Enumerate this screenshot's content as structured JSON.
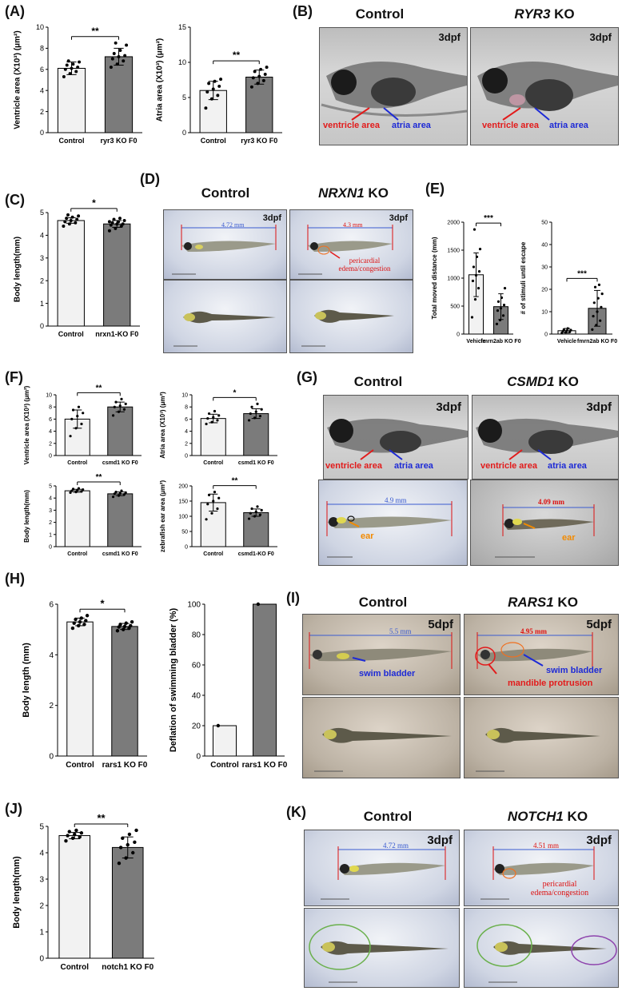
{
  "panels": {
    "A": {
      "label": "(A)"
    },
    "B": {
      "label": "(B)"
    },
    "C": {
      "label": "(C)"
    },
    "D": {
      "label": "(D)"
    },
    "E": {
      "label": "(E)"
    },
    "F": {
      "label": "(F)"
    },
    "G": {
      "label": "(G)"
    },
    "H": {
      "label": "(H)"
    },
    "I": {
      "label": "(I)"
    },
    "J": {
      "label": "(J)"
    },
    "K": {
      "label": "(K)"
    }
  },
  "images": {
    "B": {
      "control": "Control",
      "ko_gene": "RYR3",
      "ko_suffix": " KO",
      "stage": "3dpf",
      "ventricle": "ventricle area",
      "atria": "atria area"
    },
    "D": {
      "control": "Control",
      "ko_gene": "NRXN1",
      "ko_suffix": " KO",
      "stage": "3dpf",
      "len_control": "4.72 mm",
      "len_ko": "4.3 mm",
      "note": "pericardial edema/congestion"
    },
    "G": {
      "control": "Control",
      "ko_gene": "CSMD1",
      "ko_suffix": " KO",
      "stage": "3dpf",
      "ventricle": "ventricle area",
      "atria": "atria area",
      "len_control": "4.9 mm",
      "len_ko": "4.09 mm",
      "ear": "ear"
    },
    "I": {
      "control": "Control",
      "ko_gene": "RARS1",
      "ko_suffix": " KO",
      "stage": "5dpf",
      "len_control": "5.5 mm",
      "len_ko": "4.95 mm",
      "swim_bladder": "swim bladder",
      "mandible": "mandible protrusion"
    },
    "K": {
      "control": "Control",
      "ko_gene": "NOTCH1",
      "ko_suffix": " KO",
      "stage": "3dpf",
      "len_control": "4.72 mm",
      "len_ko": "4.51 mm",
      "note": "pericardial edema/congestion"
    }
  },
  "colors": {
    "control_bar": "#f2f2f2",
    "ko_bar": "#7b7b7b",
    "red_label": "#e21b1b",
    "blue_label": "#1d2ad6",
    "orange_label": "#f28a00",
    "green_ellipse": "#6ab04c",
    "purple_ellipse": "#8e44ad"
  },
  "chart_data": [
    {
      "id": "A1",
      "type": "bar",
      "categories": [
        "Control",
        "ryr3 KO F0"
      ],
      "values": [
        6.1,
        7.2
      ],
      "errors": [
        0.6,
        0.8
      ],
      "points": [
        [
          5.3,
          5.6,
          5.8,
          6.0,
          6.1,
          6.2,
          6.4,
          6.5,
          6.7,
          6.8
        ],
        [
          6.2,
          6.5,
          6.8,
          7.0,
          7.2,
          7.3,
          7.5,
          7.8,
          8.3,
          8.5
        ]
      ],
      "ylabel": "Ventricle area (X10³) (μm²)",
      "ylim": [
        0,
        10
      ],
      "yticks": [
        0,
        2,
        4,
        6,
        8,
        10
      ],
      "sig": "**"
    },
    {
      "id": "A2",
      "type": "bar",
      "categories": [
        "Control",
        "ryr3 KO F0"
      ],
      "values": [
        6.0,
        7.9
      ],
      "errors": [
        1.3,
        1.0
      ],
      "points": [
        [
          3.5,
          4.8,
          5.3,
          5.8,
          6.2,
          6.6,
          7.0,
          7.3,
          7.6
        ],
        [
          6.5,
          7.0,
          7.4,
          7.8,
          8.0,
          8.3,
          8.7,
          9.0,
          9.3
        ]
      ],
      "ylabel": "Atria area (X10³) (μm²)",
      "ylim": [
        0,
        15
      ],
      "yticks": [
        0,
        5,
        10,
        15
      ],
      "sig": "**"
    },
    {
      "id": "C",
      "type": "bar",
      "categories": [
        "Control",
        "nrxn1-KO F0"
      ],
      "values": [
        4.65,
        4.5
      ],
      "errors": [
        0.12,
        0.15
      ],
      "points": [
        [
          4.4,
          4.5,
          4.55,
          4.6,
          4.65,
          4.7,
          4.75,
          4.8,
          4.85,
          4.9
        ],
        [
          4.2,
          4.3,
          4.4,
          4.45,
          4.5,
          4.5,
          4.55,
          4.6,
          4.65,
          4.7,
          4.75,
          4.6
        ]
      ],
      "ylabel": "Body length(mm)",
      "ylim": [
        0,
        5
      ],
      "yticks": [
        0,
        1,
        2,
        3,
        4,
        5
      ],
      "sig": "*"
    },
    {
      "id": "E1",
      "type": "bar",
      "categories": [
        "Vehicle",
        "fmrn2ab KO F0"
      ],
      "values": [
        1060,
        490
      ],
      "errors": [
        390,
        230
      ],
      "points": [
        [
          300,
          620,
          820,
          950,
          1050,
          1120,
          1200,
          1380,
          1520,
          1870
        ],
        [
          180,
          250,
          330,
          420,
          460,
          520,
          580,
          650,
          820
        ]
      ],
      "ylabel": "Total moved distance (mm)",
      "ylim": [
        0,
        2000
      ],
      "yticks": [
        0,
        500,
        1000,
        1500,
        2000
      ],
      "sig": "***"
    },
    {
      "id": "E2",
      "type": "bar",
      "categories": [
        "Vehicle",
        "fmrn2ab KO F0"
      ],
      "values": [
        1.5,
        11.5
      ],
      "errors": [
        1.0,
        8.0
      ],
      "points": [
        [
          0.5,
          0.8,
          1.0,
          1.2,
          1.5,
          1.8,
          2.0,
          2.5
        ],
        [
          2,
          4,
          6,
          8,
          10,
          12,
          14,
          16,
          18,
          21,
          22
        ]
      ],
      "ylabel": "# of stimuli until escape",
      "ylim": [
        0,
        50
      ],
      "yticks": [
        0,
        10,
        20,
        30,
        40,
        50
      ],
      "sig": "***"
    },
    {
      "id": "F1",
      "type": "bar",
      "categories": [
        "Control",
        "csmd1 KO F0"
      ],
      "values": [
        6.0,
        8.0
      ],
      "errors": [
        1.5,
        0.8
      ],
      "points": [
        [
          3.2,
          4.5,
          5.2,
          6.0,
          6.5,
          7.0,
          7.5,
          8.0
        ],
        [
          6.6,
          7.2,
          7.6,
          8.0,
          8.2,
          8.5,
          8.8,
          9.3
        ]
      ],
      "ylabel": "Ventricle area (X10³) (μm²)",
      "ylim": [
        0,
        10
      ],
      "yticks": [
        0,
        2,
        4,
        6,
        8,
        10
      ],
      "sig": "**"
    },
    {
      "id": "F2",
      "type": "bar",
      "categories": [
        "Control",
        "csmd1 KO F0"
      ],
      "values": [
        6.1,
        6.9
      ],
      "errors": [
        0.7,
        0.8
      ],
      "points": [
        [
          5.2,
          5.5,
          5.8,
          6.1,
          6.3,
          6.6,
          6.9,
          7.3
        ],
        [
          5.8,
          6.2,
          6.5,
          6.9,
          7.2,
          7.6,
          8.0,
          8.5
        ]
      ],
      "ylabel": "Atria area (X10³) (μm²)",
      "ylim": [
        0,
        10
      ],
      "yticks": [
        0,
        2,
        4,
        6,
        8,
        10
      ],
      "sig": "*"
    },
    {
      "id": "F3",
      "type": "bar",
      "categories": [
        "Control",
        "csmd1 KO F0"
      ],
      "values": [
        4.6,
        4.35
      ],
      "errors": [
        0.12,
        0.15
      ],
      "points": [
        [
          4.45,
          4.5,
          4.55,
          4.6,
          4.65,
          4.7,
          4.75,
          4.8
        ],
        [
          4.1,
          4.2,
          4.3,
          4.35,
          4.4,
          4.45,
          4.5,
          4.6
        ]
      ],
      "ylabel": "Body length(mm)",
      "ylim": [
        0,
        5
      ],
      "yticks": [
        0,
        1,
        2,
        3,
        4,
        5
      ],
      "sig": "**"
    },
    {
      "id": "F4",
      "type": "bar",
      "categories": [
        "Control",
        "csmd1-KO F0"
      ],
      "values": [
        145,
        112
      ],
      "errors": [
        28,
        12
      ],
      "points": [
        [
          90,
          110,
          125,
          140,
          150,
          160,
          170,
          180
        ],
        [
          92,
          100,
          105,
          110,
          115,
          120,
          125,
          132
        ]
      ],
      "ylabel": "zebrafish ear area (μm²)",
      "ylim": [
        0,
        200
      ],
      "yticks": [
        0,
        50,
        100,
        150,
        200
      ],
      "sig": "**"
    },
    {
      "id": "H1",
      "type": "bar",
      "categories": [
        "Control",
        "rars1 KO F0"
      ],
      "values": [
        5.3,
        5.12
      ],
      "errors": [
        0.15,
        0.12
      ],
      "points": [
        [
          5.05,
          5.15,
          5.2,
          5.25,
          5.3,
          5.35,
          5.4,
          5.45,
          5.55
        ],
        [
          4.95,
          5.0,
          5.05,
          5.1,
          5.12,
          5.15,
          5.2,
          5.25,
          5.3
        ]
      ],
      "ylabel": "Body length (mm)",
      "ylim": [
        0,
        6
      ],
      "yticks": [
        0,
        2,
        4,
        6
      ],
      "sig": "*"
    },
    {
      "id": "H2",
      "type": "bar",
      "categories": [
        "Control",
        "rars1 KO F0"
      ],
      "values": [
        20,
        100
      ],
      "errors": [
        0,
        0
      ],
      "points": [
        [
          20
        ],
        [
          100
        ]
      ],
      "ylabel": "Deflation of swimming bladder (%)",
      "ylim": [
        0,
        100
      ],
      "yticks": [
        0,
        20,
        40,
        60,
        80,
        100
      ],
      "sig": ""
    },
    {
      "id": "J",
      "type": "bar",
      "categories": [
        "Control",
        "notch1 KO F0"
      ],
      "values": [
        4.65,
        4.2
      ],
      "errors": [
        0.12,
        0.4
      ],
      "points": [
        [
          4.45,
          4.55,
          4.6,
          4.65,
          4.7,
          4.75,
          4.8,
          4.85
        ],
        [
          3.6,
          3.8,
          4.0,
          4.2,
          4.3,
          4.4,
          4.55,
          4.7,
          4.85
        ]
      ],
      "ylabel": "Body length(mm)",
      "ylim": [
        0,
        5
      ],
      "yticks": [
        0,
        1,
        2,
        3,
        4,
        5
      ],
      "sig": "**"
    }
  ]
}
